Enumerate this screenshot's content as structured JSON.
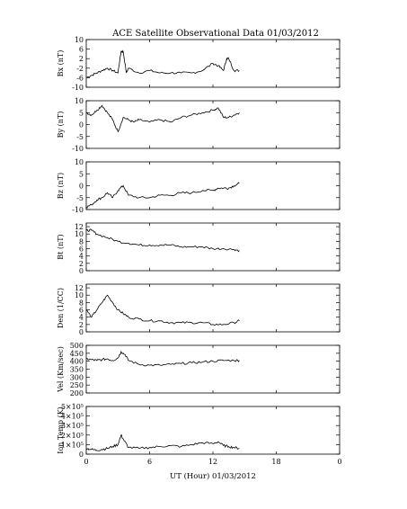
{
  "chart_data": {
    "type": "line",
    "title": "ACE Satellite Observational Data   01/03/2012",
    "xlabel": "UT (Hour)   01/03/2012",
    "x_ticks": [
      "0",
      "6",
      "12",
      "18",
      "0"
    ],
    "xlim": [
      0,
      24
    ],
    "data_end_hour": 14.5,
    "line_color": "#000000",
    "panels": [
      {
        "ylabel": "Bx (nT)",
        "ylim": [
          -10,
          10
        ],
        "y_ticks": [
          "10",
          "6",
          "2",
          "-2",
          "-6",
          "-10"
        ],
        "tick_values": [
          10,
          6,
          2,
          -2,
          -6,
          -10
        ],
        "series": {
          "x": [
            0,
            0.5,
            1,
            1.5,
            2,
            2.5,
            3,
            3.3,
            3.5,
            3.8,
            4,
            5,
            6,
            7,
            8,
            9,
            10,
            11,
            12,
            12.5,
            13,
            13.3,
            13.5,
            14,
            14.5
          ],
          "values": [
            -6,
            -5,
            -4,
            -3,
            -2,
            -3,
            -4,
            5,
            5,
            -4,
            -2,
            -4,
            -3,
            -4,
            -4,
            -4,
            -4,
            -3,
            0,
            -1,
            -3,
            2,
            2,
            -3,
            -3
          ]
        }
      },
      {
        "ylabel": "By (nT)",
        "ylim": [
          -10,
          10
        ],
        "y_ticks": [
          "10",
          "5",
          "0",
          "-5",
          "-10"
        ],
        "tick_values": [
          10,
          5,
          0,
          -5,
          -10
        ],
        "series": {
          "x": [
            0,
            0.5,
            1,
            1.5,
            2,
            2.5,
            3,
            3.5,
            4,
            4.5,
            5,
            6,
            7,
            8,
            9,
            10,
            11,
            12,
            12.5,
            13,
            13.5,
            14,
            14.5
          ],
          "values": [
            5,
            4,
            6,
            8,
            5,
            2,
            -3,
            3,
            2,
            1,
            2,
            1,
            2,
            1,
            3,
            4,
            5,
            6,
            7,
            3,
            3,
            4,
            5
          ]
        }
      },
      {
        "ylabel": "Bz (nT)",
        "ylim": [
          -10,
          10
        ],
        "y_ticks": [
          "10",
          "5",
          "0",
          "-5",
          "-10"
        ],
        "tick_values": [
          10,
          5,
          0,
          -5,
          -10
        ],
        "series": {
          "x": [
            0,
            0.5,
            1,
            1.5,
            2,
            2.5,
            3,
            3.5,
            4,
            5,
            6,
            7,
            8,
            9,
            10,
            11,
            12,
            12.5,
            13,
            13.5,
            14,
            14.5
          ],
          "values": [
            -9,
            -8,
            -6,
            -5,
            -3,
            -5,
            -2,
            0,
            -4,
            -5,
            -5,
            -4,
            -4,
            -3,
            -3,
            -2,
            -2,
            -1,
            -1,
            -1,
            0,
            1
          ]
        }
      },
      {
        "ylabel": "Bt (nT)",
        "ylim": [
          0,
          13
        ],
        "y_ticks": [
          "12",
          "10",
          "8",
          "6",
          "4",
          "2",
          "0"
        ],
        "tick_values": [
          12,
          10,
          8,
          6,
          4,
          2,
          0
        ],
        "series": {
          "x": [
            0,
            0.5,
            1,
            2,
            3,
            4,
            5,
            6,
            7,
            8,
            9,
            10,
            11,
            12,
            13,
            14,
            14.5
          ],
          "values": [
            11,
            11,
            10,
            9,
            8,
            7.5,
            7,
            7,
            7,
            7,
            6.5,
            6.5,
            6.5,
            6,
            6,
            5.8,
            5.5
          ]
        }
      },
      {
        "ylabel": "Den (1/CC)",
        "ylim": [
          0,
          13
        ],
        "y_ticks": [
          "12",
          "10",
          "8",
          "6",
          "4",
          "2",
          "0"
        ],
        "tick_values": [
          12,
          10,
          8,
          6,
          4,
          2,
          0
        ],
        "series": {
          "x": [
            0,
            0.5,
            1,
            1.5,
            2,
            2.5,
            3,
            3.5,
            4,
            5,
            6,
            7,
            8,
            9,
            10,
            11,
            12,
            13,
            14,
            14.5
          ],
          "values": [
            6,
            4,
            6,
            8,
            10,
            8,
            6,
            5,
            4,
            3.5,
            3,
            3,
            2.5,
            2.5,
            2.5,
            2.5,
            2,
            2,
            2.5,
            3
          ]
        }
      },
      {
        "ylabel": "Vel (Km/sec)",
        "ylim": [
          200,
          500
        ],
        "y_ticks": [
          "500",
          "450",
          "400",
          "350",
          "300",
          "250",
          "200"
        ],
        "tick_values": [
          500,
          450,
          400,
          350,
          300,
          250,
          200
        ],
        "series": {
          "x": [
            0,
            0.5,
            1,
            1.5,
            2,
            2.5,
            3,
            3.3,
            3.7,
            4,
            5,
            6,
            7,
            8,
            9,
            10,
            11,
            12,
            13,
            14,
            14.5
          ],
          "values": [
            415,
            410,
            405,
            410,
            415,
            405,
            420,
            460,
            440,
            405,
            380,
            375,
            375,
            380,
            385,
            390,
            395,
            400,
            405,
            405,
            405
          ]
        }
      },
      {
        "ylabel": "Ion Temp (K)",
        "ylim": [
          0,
          500000
        ],
        "y_ticks": [
          "5×10⁵",
          "4×10⁵",
          "3×10⁵",
          "2×10⁵",
          "1×10⁵",
          "0"
        ],
        "tick_values": [
          500000,
          400000,
          300000,
          200000,
          100000,
          0
        ],
        "series": {
          "x": [
            0,
            0.5,
            1,
            1.5,
            2,
            2.5,
            3,
            3.3,
            3.6,
            4,
            5,
            6,
            7,
            8,
            9,
            10,
            11,
            12,
            12.5,
            13,
            13.5,
            14,
            14.5
          ],
          "values": [
            60000,
            50000,
            40000,
            50000,
            60000,
            80000,
            100000,
            200000,
            140000,
            70000,
            60000,
            70000,
            80000,
            90000,
            80000,
            100000,
            120000,
            110000,
            130000,
            90000,
            80000,
            70000,
            60000
          ]
        }
      }
    ]
  }
}
